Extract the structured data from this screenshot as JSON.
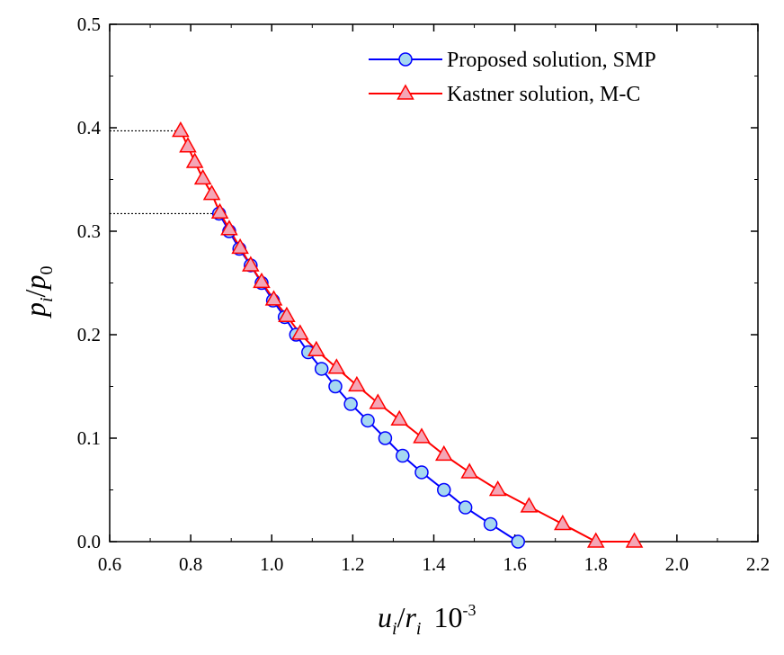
{
  "chart_data": {
    "type": "line",
    "xlabel": {
      "var": "u",
      "sub1": "i",
      "sep": "/",
      "var2": "r",
      "sub2": "i",
      "unit": "10",
      "unit_exp": "-3"
    },
    "ylabel": {
      "var": "p",
      "sub1": "i",
      "sep": "/",
      "var2": "p",
      "sub2": "0"
    },
    "xlim": [
      0.6,
      2.2
    ],
    "ylim": [
      0.0,
      0.5
    ],
    "xticks": [
      "0.6",
      "0.8",
      "1.0",
      "1.2",
      "1.4",
      "1.6",
      "1.8",
      "2.0",
      "2.2"
    ],
    "yticks": [
      "0.0",
      "0.1",
      "0.2",
      "0.3",
      "0.4",
      "0.5"
    ],
    "reference_lines": [
      {
        "y": 0.397,
        "x_end": 0.77
      },
      {
        "y": 0.317,
        "x_end": 0.87
      }
    ],
    "series": [
      {
        "name": "Proposed solution, SMP",
        "color": "#0000ff",
        "marker": "circle",
        "marker_fill": "#a6d8f0",
        "x": [
          0.87,
          0.895,
          0.92,
          0.948,
          0.975,
          1.003,
          1.032,
          1.06,
          1.09,
          1.123,
          1.157,
          1.195,
          1.237,
          1.28,
          1.323,
          1.37,
          1.425,
          1.478,
          1.54,
          1.608
        ],
        "y": [
          0.317,
          0.3,
          0.283,
          0.267,
          0.25,
          0.233,
          0.217,
          0.2,
          0.183,
          0.167,
          0.15,
          0.133,
          0.117,
          0.1,
          0.083,
          0.067,
          0.05,
          0.033,
          0.017,
          0.0
        ]
      },
      {
        "name": "Kastner solution, M-C",
        "color": "#ff0000",
        "marker": "triangle",
        "marker_fill": "#f4a6b6",
        "x": [
          0.775,
          0.793,
          0.81,
          0.83,
          0.852,
          0.872,
          0.895,
          0.922,
          0.948,
          0.975,
          1.005,
          1.037,
          1.07,
          1.11,
          1.16,
          1.21,
          1.262,
          1.315,
          1.37,
          1.425,
          1.488,
          1.558,
          1.635,
          1.718,
          1.8,
          1.895
        ],
        "y": [
          0.397,
          0.382,
          0.367,
          0.351,
          0.336,
          0.318,
          0.302,
          0.284,
          0.267,
          0.251,
          0.234,
          0.218,
          0.201,
          0.185,
          0.168,
          0.151,
          0.134,
          0.118,
          0.101,
          0.084,
          0.067,
          0.05,
          0.034,
          0.017,
          0.0,
          0.0
        ]
      }
    ]
  }
}
